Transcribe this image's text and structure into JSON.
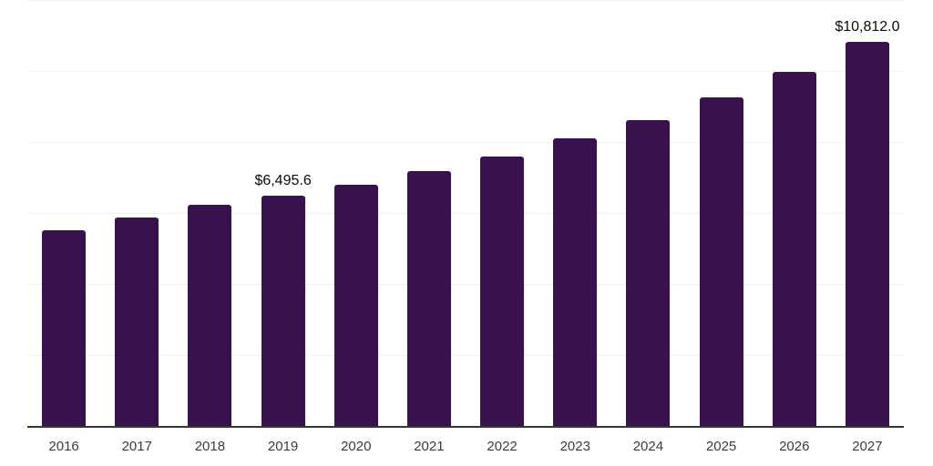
{
  "chart_data": {
    "type": "bar",
    "title": "",
    "xlabel": "",
    "ylabel": "",
    "categories": [
      "2016",
      "2017",
      "2018",
      "2019",
      "2020",
      "2021",
      "2022",
      "2023",
      "2024",
      "2025",
      "2026",
      "2027"
    ],
    "values": [
      5515,
      5860,
      6220,
      6495.6,
      6800,
      7175,
      7600,
      8100,
      8625,
      9250,
      9975,
      10812
    ],
    "data_labels": [
      "",
      "",
      "",
      "$6,495.6",
      "",
      "",
      "",
      "",
      "",
      "",
      "",
      "$10,812.0"
    ],
    "ylim": [
      0,
      12000
    ],
    "gridlines": [
      2000,
      4000,
      6000,
      8000,
      10000,
      12000
    ],
    "grid": "horizontal",
    "legend": "none",
    "colors": {
      "bar": "#38114F",
      "gridline": "#f0f0f0",
      "axis_line": "#363636",
      "data_label": "#0a0a0a",
      "tick_label": "#3c3c3c",
      "background": "#ffffff"
    }
  }
}
